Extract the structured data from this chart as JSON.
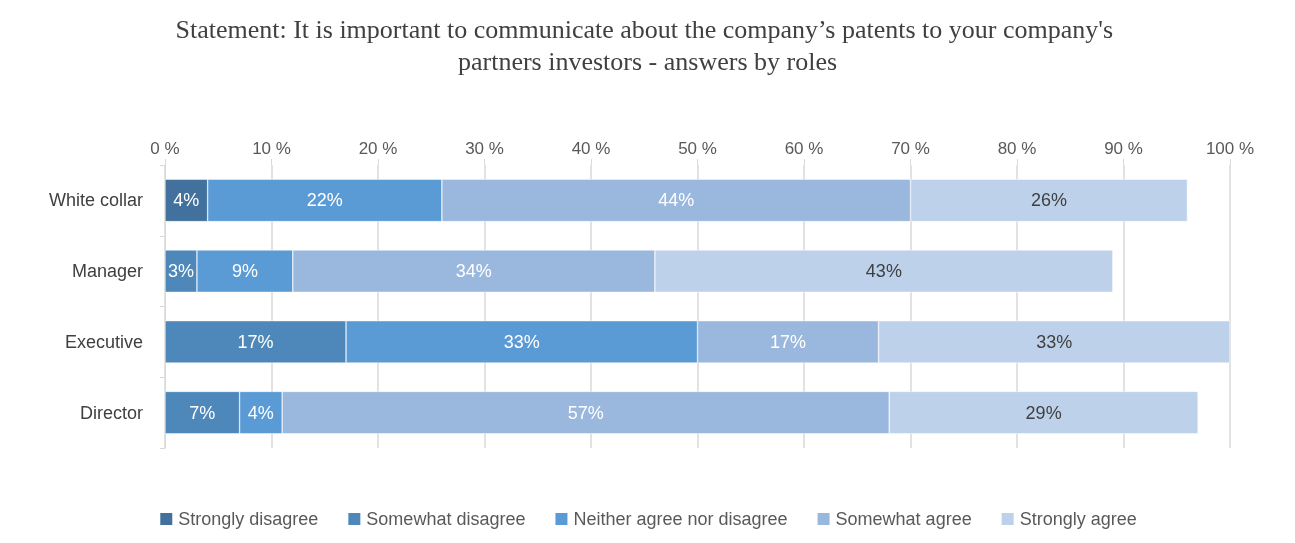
{
  "chart_data": {
    "type": "bar",
    "orientation": "horizontal",
    "stacked": true,
    "title": "Statement: It is important to communicate about the company’s patents to your company's partners investors - answers by roles",
    "categories": [
      "White collar",
      "Manager",
      "Executive",
      "Director"
    ],
    "series": [
      {
        "name": "Strongly disagree",
        "color": "#41719c",
        "values": [
          4,
          null,
          null,
          null
        ],
        "value_labels": [
          "4%",
          null,
          null,
          null
        ]
      },
      {
        "name": "Somewhat disagree",
        "color": "#4e88bb",
        "values": [
          null,
          3,
          17,
          7
        ],
        "value_labels": [
          null,
          "3%",
          "17%",
          "7%"
        ]
      },
      {
        "name": "Neither agree nor disagree",
        "color": "#5b9bd5",
        "values": [
          22,
          9,
          33,
          4
        ],
        "value_labels": [
          "22%",
          "9%",
          "33%",
          "4%"
        ]
      },
      {
        "name": "Somewhat agree",
        "color": "#9ab8de",
        "values": [
          44,
          34,
          17,
          57
        ],
        "value_labels": [
          "44%",
          "34%",
          "17%",
          "57%"
        ]
      },
      {
        "name": "Strongly agree",
        "color": "#bdd1eb",
        "values": [
          26,
          43,
          33,
          29
        ],
        "value_labels": [
          "26%",
          "43%",
          "33%",
          "29%"
        ]
      }
    ],
    "xlim": [
      0,
      100
    ],
    "xticks": [
      {
        "value": 0,
        "label": "0 %"
      },
      {
        "value": 10,
        "label": "10 %"
      },
      {
        "value": 20,
        "label": "20 %"
      },
      {
        "value": 30,
        "label": "30 %"
      },
      {
        "value": 40,
        "label": "40 %"
      },
      {
        "value": 50,
        "label": "50 %"
      },
      {
        "value": 60,
        "label": "60 %"
      },
      {
        "value": 70,
        "label": "70 %"
      },
      {
        "value": 80,
        "label": "80 %"
      },
      {
        "value": 90,
        "label": "90 %"
      },
      {
        "value": 100,
        "label": "100 %"
      }
    ],
    "grid": "x",
    "legend": "bottom"
  }
}
